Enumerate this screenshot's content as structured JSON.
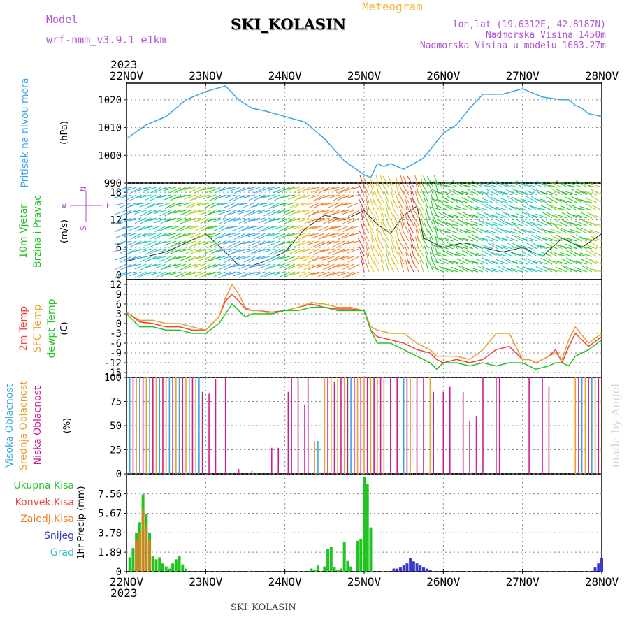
{
  "header": {
    "model_label": "Model",
    "model_name": "wrf-nmm_v3.9.1 e1km",
    "title": "Meteogram",
    "station": "SKI_KOLASIN",
    "lonlat": "lon,lat (19.6312E, 42.8187N)",
    "altitude": "Nadmorska Visina 1450m",
    "model_altitude": "Nadmorska Visina u modelu 1683.27m",
    "watermark": "made by Angel",
    "footer_station": "SKI_KOLASIN"
  },
  "colors": {
    "pressure": "#3aa6e8",
    "temp2m": "#f04040",
    "sfc_temp": "#e8a030",
    "dewpoint": "#22c422",
    "high_cloud": "#3aa6e8",
    "mid_cloud": "#e8a030",
    "low_cloud": "#cc1f8a",
    "total_precip": "#22c422",
    "conv_precip": "#f04040",
    "frozen_precip": "#f07a20",
    "snow": "#3a3acc",
    "graupel": "#22c4b8",
    "label_purple": "#b153d6"
  },
  "chart_data": [
    {
      "type": "line",
      "panel": "pressure",
      "ylabel_lines": [
        "Pritisak na nivou mora"
      ],
      "unit": "(hPa)",
      "x_ticks": [
        "22NOV",
        "23NOV",
        "24NOV",
        "25NOV",
        "26NOV",
        "27NOV",
        "28NOV"
      ],
      "x_year": "2023",
      "xlim": [
        0,
        144
      ],
      "ylim": [
        990,
        1026
      ],
      "yticks": [
        990,
        1000,
        1010,
        1020
      ],
      "grid": true,
      "series": [
        {
          "name": "Pritisak na nivou mora",
          "x": [
            0,
            6,
            12,
            18,
            24,
            30,
            34,
            38,
            42,
            48,
            54,
            60,
            66,
            72,
            74,
            76,
            78,
            80,
            84,
            90,
            96,
            100,
            102,
            104,
            108,
            114,
            120,
            126,
            132,
            134,
            136,
            138,
            140,
            144
          ],
          "y": [
            1006,
            1011,
            1014,
            1020,
            1023,
            1025,
            1020,
            1017,
            1016,
            1014,
            1012,
            1006,
            998,
            993,
            992,
            997,
            996,
            997,
            995,
            999,
            1008,
            1011,
            1014,
            1017,
            1022,
            1022,
            1024,
            1021,
            1020,
            1020,
            1018,
            1017,
            1015,
            1014
          ]
        }
      ]
    },
    {
      "type": "line",
      "panel": "wind",
      "ylabel_lines": [
        "10m Vjetar",
        "Brzina i Pravac"
      ],
      "unit": "(m/s)",
      "direction_legend": [
        "W",
        "E",
        "N",
        "S"
      ],
      "xlim": [
        0,
        144
      ],
      "ylim": [
        -1,
        20
      ],
      "yticks": [
        0,
        6,
        12,
        18
      ],
      "grid": true,
      "series": [
        {
          "name": "10m Vjetar",
          "x": [
            0,
            6,
            12,
            18,
            24,
            30,
            34,
            38,
            42,
            48,
            54,
            60,
            66,
            72,
            76,
            80,
            84,
            88,
            90,
            96,
            102,
            108,
            114,
            120,
            126,
            132,
            138,
            144
          ],
          "y": [
            3,
            4,
            5,
            7,
            9,
            5,
            2,
            2,
            3,
            5,
            10,
            13,
            12,
            14,
            11,
            9,
            13,
            15,
            8,
            6,
            7,
            6,
            5,
            6,
            4,
            8,
            6,
            9
          ]
        }
      ]
    },
    {
      "type": "line",
      "panel": "temperature",
      "ylabel_lines": [
        "2m Temp",
        "SFC Temp",
        "dewpt Temp"
      ],
      "unit": "(C)",
      "xlim": [
        0,
        144
      ],
      "ylim": [
        -16.5,
        13.5
      ],
      "yticks": [
        -15,
        -12,
        -9,
        -6,
        -3,
        0,
        3,
        6,
        9,
        12
      ],
      "grid": true,
      "x": [
        0,
        4,
        8,
        12,
        16,
        20,
        24,
        28,
        30,
        32,
        34,
        36,
        38,
        40,
        44,
        48,
        52,
        56,
        60,
        64,
        68,
        72,
        74,
        76,
        80,
        84,
        88,
        92,
        94,
        96,
        100,
        104,
        108,
        112,
        116,
        120,
        122,
        124,
        128,
        130,
        132,
        134,
        136,
        140,
        144
      ],
      "series": [
        {
          "name": "2m Temp",
          "y": [
            3.5,
            0.5,
            0,
            -1,
            -1,
            -2,
            -2,
            2,
            7,
            9,
            7,
            4.5,
            4,
            4,
            3.5,
            4,
            5,
            6,
            5,
            4.5,
            4.5,
            4,
            -2,
            -4,
            -5,
            -6,
            -8,
            -9,
            -11,
            -12,
            -11,
            -12,
            -11,
            -8,
            -7,
            -11,
            -11,
            -12,
            -10,
            -8,
            -12,
            -7,
            -3,
            -7,
            -4
          ]
        },
        {
          "name": "SFC Temp",
          "y": [
            3.5,
            1,
            1,
            0,
            0,
            -1,
            -2,
            2,
            8,
            12,
            9,
            5,
            4,
            4,
            3,
            4,
            5,
            6.5,
            6,
            5,
            5,
            4,
            -1,
            -2,
            -3,
            -3,
            -6,
            -8,
            -10,
            -10,
            -10,
            -11,
            -8,
            -3,
            -3,
            -11,
            -11,
            -12,
            -10,
            -9,
            -11,
            -5,
            -1,
            -6,
            -3
          ]
        },
        {
          "name": "dewpt Temp",
          "y": [
            3,
            -1,
            -1,
            -2,
            -2,
            -3,
            -3,
            0,
            3,
            6,
            4,
            2,
            3,
            3,
            3,
            4,
            4,
            5,
            5,
            4,
            4,
            4,
            -2,
            -6,
            -6,
            -8,
            -10,
            -12,
            -14,
            -12,
            -12,
            -13,
            -12,
            -13,
            -12,
            -12,
            -13,
            -14,
            -13,
            -12,
            -12,
            -13,
            -10,
            -8,
            -5
          ]
        }
      ]
    },
    {
      "type": "bar",
      "panel": "cloud",
      "ylabel_lines": [
        "Visoka Oblacnost",
        "Srednja Oblacnost",
        "Niska Oblacnost"
      ],
      "unit": "(%)",
      "xlim": [
        0,
        144
      ],
      "ylim": [
        0,
        100
      ],
      "yticks": [
        0,
        25,
        50,
        75,
        100
      ],
      "grid": true,
      "bars": [
        [
          1,
          "high",
          100
        ],
        [
          2,
          "low",
          100
        ],
        [
          3,
          "mid",
          100
        ],
        [
          4,
          "high",
          100
        ],
        [
          5,
          "low",
          100
        ],
        [
          6,
          "mid",
          100
        ],
        [
          7,
          "high",
          100
        ],
        [
          8,
          "low",
          100
        ],
        [
          9,
          "mid",
          100
        ],
        [
          10,
          "high",
          100
        ],
        [
          11,
          "low",
          100
        ],
        [
          12,
          "mid",
          100
        ],
        [
          13,
          "high",
          100
        ],
        [
          14,
          "low",
          100
        ],
        [
          15,
          "mid",
          100
        ],
        [
          16,
          "high",
          100
        ],
        [
          17,
          "low",
          100
        ],
        [
          18,
          "mid",
          100
        ],
        [
          19,
          "high",
          100
        ],
        [
          20,
          "low",
          100
        ],
        [
          21,
          "mid",
          100
        ],
        [
          22,
          "high",
          100
        ],
        [
          23,
          "low",
          85
        ],
        [
          25,
          "low",
          83
        ],
        [
          27,
          "low",
          98
        ],
        [
          30,
          "low",
          100
        ],
        [
          34,
          "low",
          5
        ],
        [
          38,
          "low",
          3
        ],
        [
          44,
          "low",
          27
        ],
        [
          46,
          "low",
          27
        ],
        [
          49,
          "low",
          85
        ],
        [
          50,
          "low",
          100
        ],
        [
          52,
          "low",
          100
        ],
        [
          54,
          "low",
          72
        ],
        [
          55,
          "low",
          100
        ],
        [
          57,
          "mid",
          34
        ],
        [
          58,
          "high",
          34
        ],
        [
          60,
          "mid",
          100
        ],
        [
          61,
          "low",
          100
        ],
        [
          62,
          "mid",
          100
        ],
        [
          63,
          "low",
          95
        ],
        [
          64,
          "mid",
          100
        ],
        [
          65,
          "low",
          100
        ],
        [
          66,
          "mid",
          100
        ],
        [
          67,
          "low",
          100
        ],
        [
          68,
          "high",
          100
        ],
        [
          69,
          "low",
          100
        ],
        [
          70,
          "mid",
          100
        ],
        [
          71,
          "low",
          100
        ],
        [
          72,
          "mid",
          100
        ],
        [
          73,
          "low",
          100
        ],
        [
          74,
          "mid",
          100
        ],
        [
          75,
          "low",
          100
        ],
        [
          76,
          "mid",
          100
        ],
        [
          77,
          "low",
          100
        ],
        [
          78,
          "mid",
          100
        ],
        [
          80,
          "low",
          100
        ],
        [
          82,
          "low",
          100
        ],
        [
          84,
          "high",
          100
        ],
        [
          85,
          "low",
          100
        ],
        [
          86,
          "mid",
          100
        ],
        [
          88,
          "low",
          100
        ],
        [
          90,
          "low",
          100
        ],
        [
          92,
          "mid",
          100
        ],
        [
          93,
          "low",
          85
        ],
        [
          96,
          "low",
          85
        ],
        [
          98,
          "low",
          90
        ],
        [
          102,
          "low",
          85
        ],
        [
          104,
          "low",
          55
        ],
        [
          106,
          "low",
          60
        ],
        [
          108,
          "low",
          100
        ],
        [
          112,
          "low",
          100
        ],
        [
          113,
          "low",
          100
        ],
        [
          122,
          "low",
          100
        ],
        [
          126,
          "low",
          100
        ],
        [
          128,
          "low",
          90
        ],
        [
          136,
          "mid",
          100
        ],
        [
          137,
          "low",
          100
        ],
        [
          138,
          "high",
          100
        ],
        [
          139,
          "mid",
          100
        ],
        [
          140,
          "low",
          100
        ],
        [
          141,
          "high",
          100
        ],
        [
          142,
          "mid",
          100
        ],
        [
          143,
          "low",
          100
        ]
      ],
      "series": [
        {
          "name": "Visoka Oblacnost"
        },
        {
          "name": "Srednja Oblacnost"
        },
        {
          "name": "Niska Oblacnost"
        }
      ]
    },
    {
      "type": "bar",
      "panel": "precipitation",
      "ylabel_lines": [
        "1hr Precip"
      ],
      "unit": "(mm)",
      "legend": [
        "Ukupna Kisa",
        "Konvek.Kisa",
        "Zaledj.Kisa",
        "Snijeg",
        "Grad"
      ],
      "xlim": [
        0,
        144
      ],
      "ylim": [
        0,
        9.5
      ],
      "yticks": [
        0,
        1.89,
        3.78,
        5.67,
        7.56
      ],
      "grid": true,
      "bars": [
        [
          1,
          1.4
        ],
        [
          2,
          2.3
        ],
        [
          3,
          3.8
        ],
        [
          4,
          4.8
        ],
        [
          5,
          7.5
        ],
        [
          6,
          5.6
        ],
        [
          7,
          3.8
        ],
        [
          8,
          1.5
        ],
        [
          9,
          1.2
        ],
        [
          10,
          1.4
        ],
        [
          11,
          0.8
        ],
        [
          12,
          0.5
        ],
        [
          13,
          0.3
        ],
        [
          14,
          0.8
        ],
        [
          15,
          1.2
        ],
        [
          16,
          1.5
        ],
        [
          17,
          0.7
        ],
        [
          18,
          0.3
        ],
        [
          56,
          0.3
        ],
        [
          57,
          0.2
        ],
        [
          58,
          0.6
        ],
        [
          60,
          0.5
        ],
        [
          61,
          2.2
        ],
        [
          62,
          2.4
        ],
        [
          63,
          0.4
        ],
        [
          64,
          0.2
        ],
        [
          65,
          0.3
        ],
        [
          66,
          2.9
        ],
        [
          67,
          1.1
        ],
        [
          68,
          0.5
        ],
        [
          70,
          3.0
        ],
        [
          71,
          3.2
        ],
        [
          72,
          9.2
        ],
        [
          73,
          8.5
        ],
        [
          74,
          4.3
        ],
        [
          81,
          0.3
        ],
        [
          82,
          0.3
        ],
        [
          83,
          0.4
        ],
        [
          84,
          0.6
        ],
        [
          85,
          0.8
        ],
        [
          86,
          1.3
        ],
        [
          87,
          1.0
        ],
        [
          88,
          0.8
        ],
        [
          89,
          0.6
        ],
        [
          90,
          0.4
        ],
        [
          91,
          0.3
        ],
        [
          92,
          0.2
        ],
        [
          142,
          0.4
        ],
        [
          143,
          0.8
        ],
        [
          144,
          1.3
        ]
      ],
      "series": [
        {
          "name": "Ukupna Kisa"
        },
        {
          "name": "Konvek.Kisa"
        },
        {
          "name": "Zaledj.Kisa"
        },
        {
          "name": "Snijeg"
        },
        {
          "name": "Grad"
        }
      ]
    }
  ]
}
